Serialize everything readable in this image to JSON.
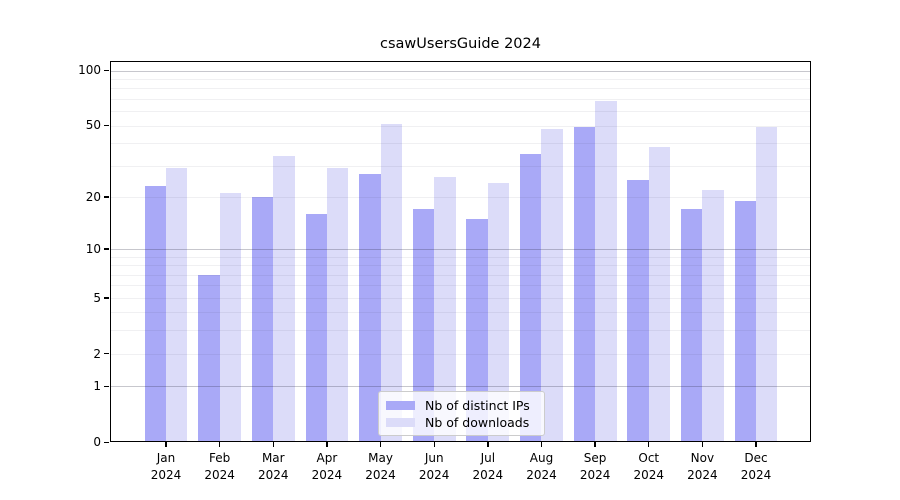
{
  "title": "csawUsersGuide 2024",
  "chart_data": {
    "type": "bar",
    "title": "csawUsersGuide 2024",
    "categories": [
      "Jan 2024",
      "Feb 2024",
      "Mar 2024",
      "Apr 2024",
      "May 2024",
      "Jun 2024",
      "Jul 2024",
      "Aug 2024",
      "Sep 2024",
      "Oct 2024",
      "Nov 2024",
      "Dec 2024"
    ],
    "months": [
      "Jan",
      "Feb",
      "Mar",
      "Apr",
      "May",
      "Jun",
      "Jul",
      "Aug",
      "Sep",
      "Oct",
      "Nov",
      "Dec"
    ],
    "year_label": "2024",
    "series": [
      {
        "name": "Nb of distinct IPs",
        "color": "#a9a9f7",
        "values": [
          23,
          7,
          20,
          16,
          27,
          17,
          15,
          35,
          49,
          25,
          17,
          19
        ]
      },
      {
        "name": "Nb of downloads",
        "color": "#dcdcf9",
        "values": [
          29,
          21,
          34,
          29,
          51,
          26,
          24,
          48,
          68,
          38,
          22,
          49
        ]
      }
    ],
    "xlabel": "",
    "ylabel": "",
    "yscale": "log1p",
    "yticks": [
      0,
      1,
      2,
      5,
      10,
      20,
      50,
      100
    ],
    "minor_gridlines": [
      2,
      3,
      4,
      5,
      6,
      7,
      8,
      9,
      20,
      30,
      40,
      50,
      60,
      70,
      80,
      90
    ],
    "major_gridlines": [
      1,
      10,
      100
    ],
    "ylim": [
      0,
      112
    ],
    "grid": "horizontal",
    "legend_position": "lower center"
  },
  "colors": {
    "background": "#ffffff",
    "spine": "#000000",
    "series_ips": "#a9a9f7",
    "series_downloads": "#dcdcf9",
    "legend_border": "#cccccc"
  }
}
